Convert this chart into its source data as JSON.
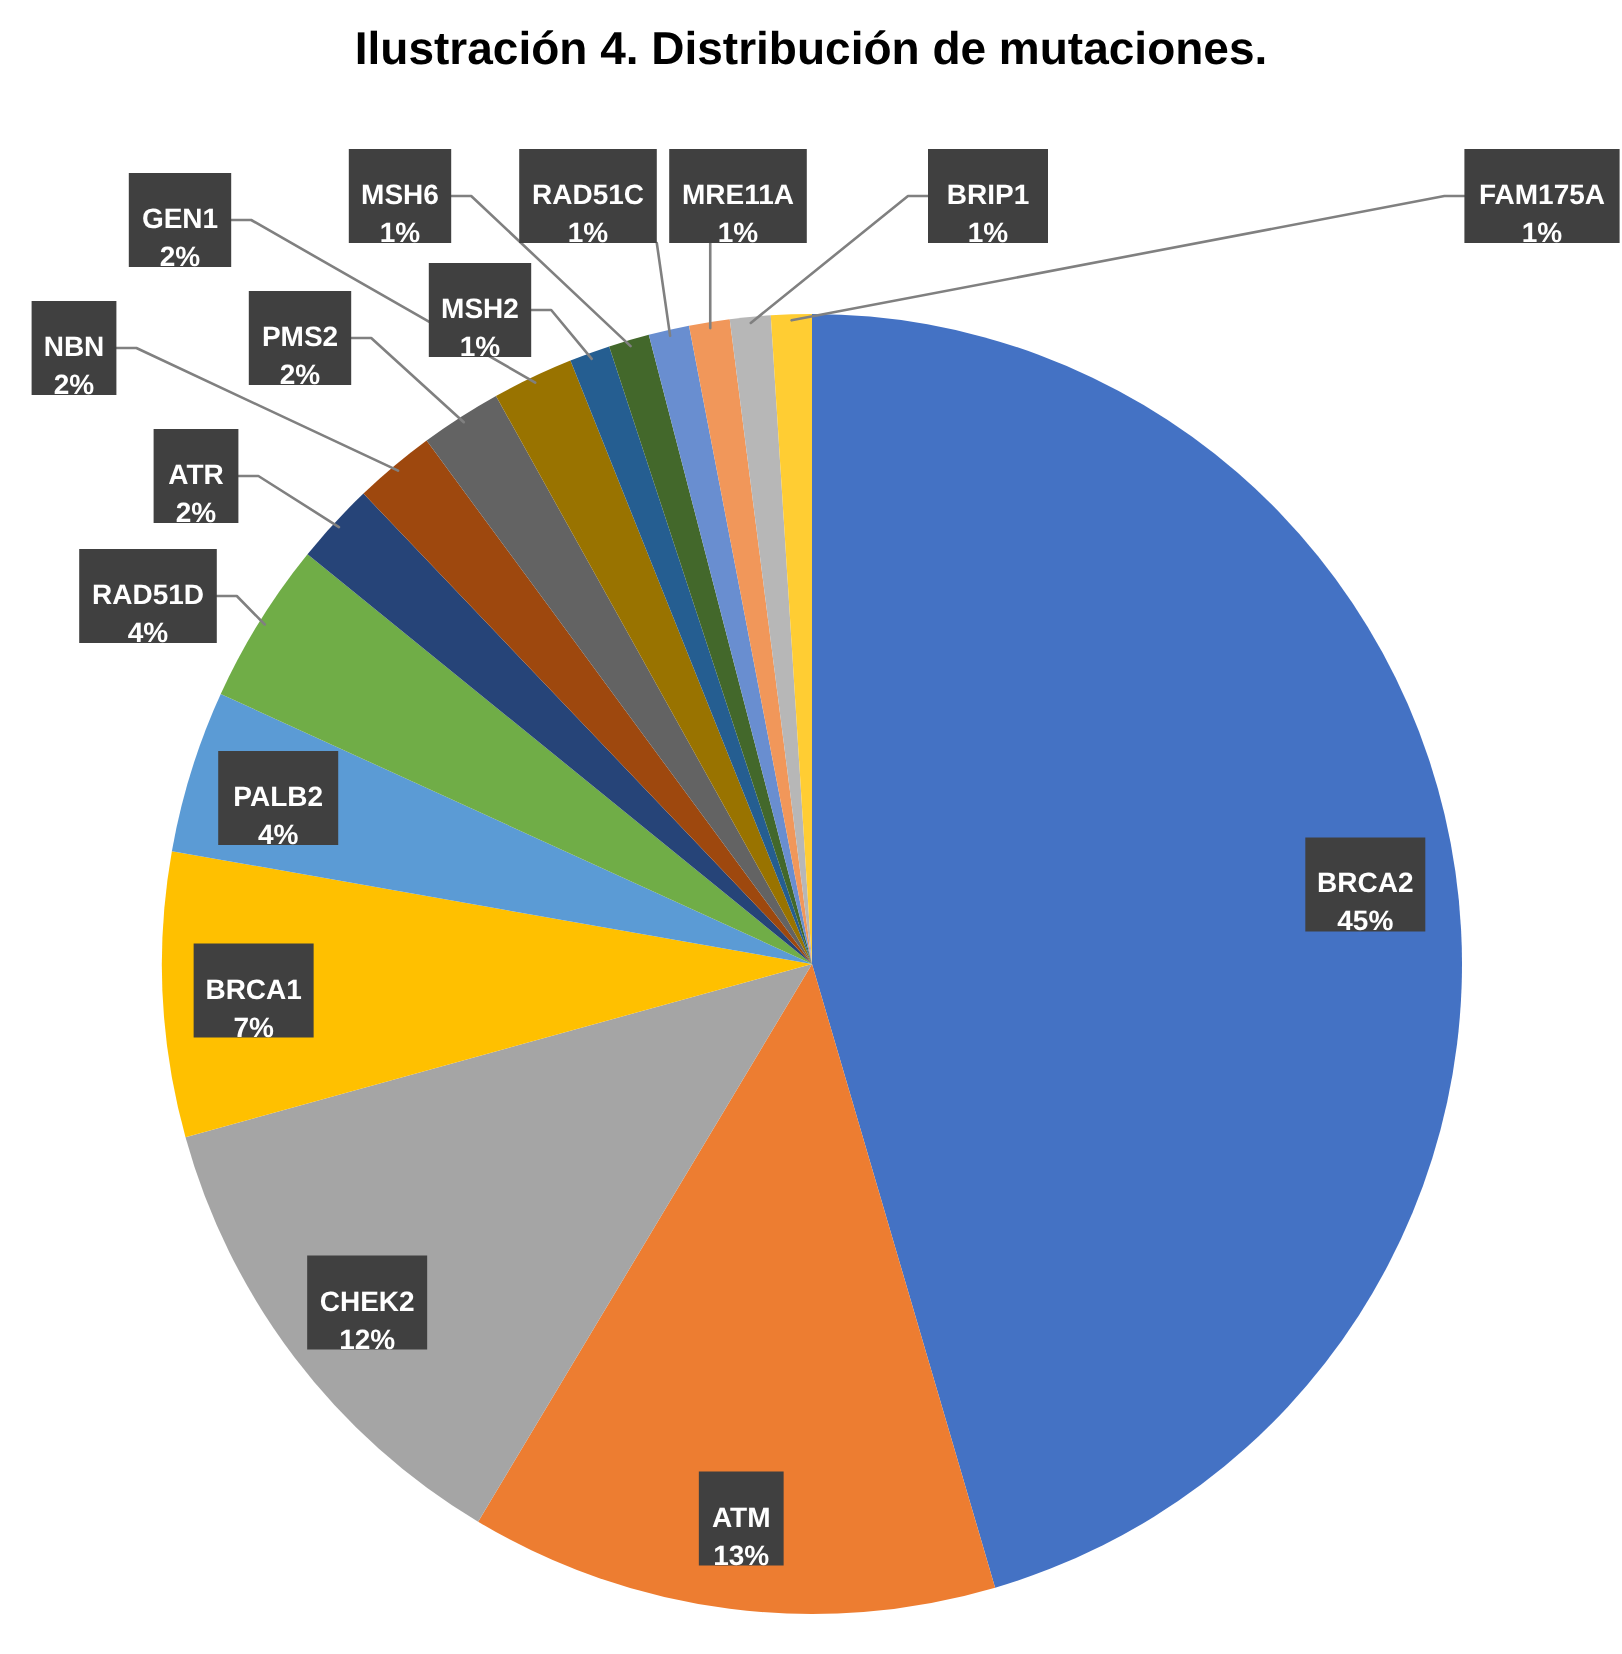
{
  "chart_data": {
    "type": "pie",
    "title": "Ilustración 4. Distribución de mutaciones.",
    "categories": [
      "BRCA2",
      "ATM",
      "CHEK2",
      "BRCA1",
      "PALB2",
      "RAD51D",
      "ATR",
      "NBN",
      "PMS2",
      "GEN1",
      "MSH2",
      "MSH6",
      "RAD51C",
      "MRE11A",
      "BRIP1",
      "FAM175A"
    ],
    "values": [
      45,
      13,
      12,
      7,
      4,
      4,
      2,
      2,
      2,
      2,
      1,
      1,
      1,
      1,
      1,
      1
    ],
    "colors": [
      "#4472c4",
      "#ed7d31",
      "#a5a5a5",
      "#ffc000",
      "#5b9bd5",
      "#70ad47",
      "#264478",
      "#9e480e",
      "#636363",
      "#997300",
      "#255e91",
      "#43682b",
      "#698ed0",
      "#f1975a",
      "#b7b7b7",
      "#ffcd33"
    ],
    "value_labels": [
      "45%",
      "13%",
      "12%",
      "7%",
      "4%",
      "4%",
      "2%",
      "2%",
      "2%",
      "2%",
      "1%",
      "1%",
      "1%",
      "1%",
      "1%",
      "1%"
    ]
  }
}
